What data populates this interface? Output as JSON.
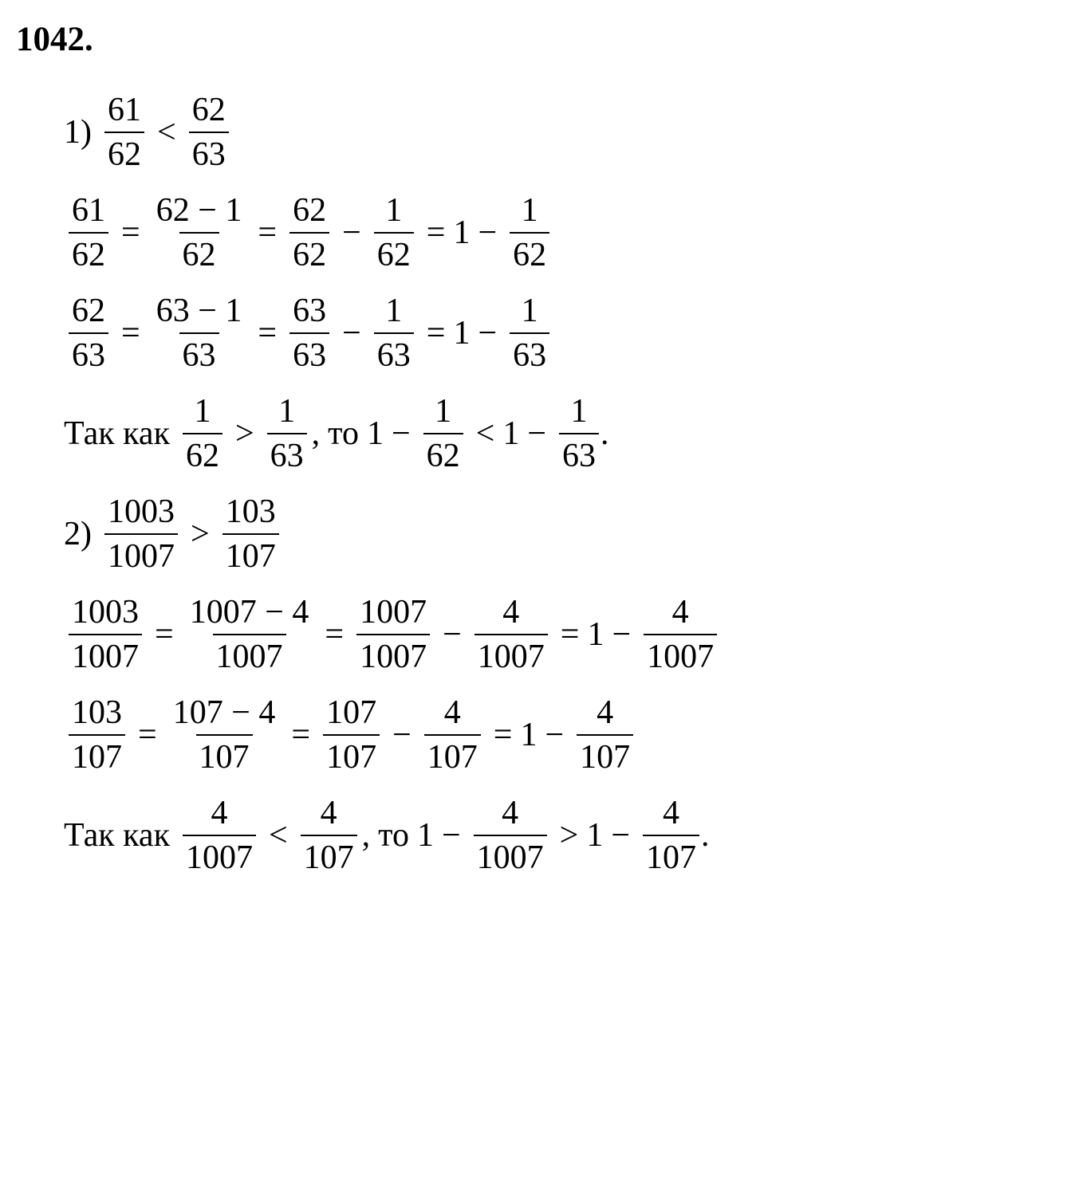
{
  "problem_number": "1042.",
  "item1": {
    "label": "1)",
    "inequality": {
      "left_num": "61",
      "left_den": "62",
      "op": "<",
      "right_num": "62",
      "right_den": "63"
    },
    "expansion1": {
      "a_num": "61",
      "a_den": "62",
      "b_num": "62 − 1",
      "b_den": "62",
      "c_num": "62",
      "c_den": "62",
      "d_num": "1",
      "d_den": "62",
      "e": "1",
      "f_num": "1",
      "f_den": "62"
    },
    "expansion2": {
      "a_num": "62",
      "a_den": "63",
      "b_num": "63 − 1",
      "b_den": "63",
      "c_num": "63",
      "c_den": "63",
      "d_num": "1",
      "d_den": "63",
      "e": "1",
      "f_num": "1",
      "f_den": "63"
    },
    "conclusion": {
      "prefix": "Так как",
      "left_num": "1",
      "left_den": "62",
      "op1": ">",
      "right_num": "1",
      "right_den": "63",
      "comma": ",",
      "mid": "то",
      "r1_a": "1",
      "r1_num": "1",
      "r1_den": "62",
      "op2": "<",
      "r2_a": "1",
      "r2_num": "1",
      "r2_den": "63",
      "period": "."
    }
  },
  "item2": {
    "label": "2)",
    "inequality": {
      "left_num": "1003",
      "left_den": "1007",
      "op": ">",
      "right_num": "103",
      "right_den": "107"
    },
    "expansion1": {
      "a_num": "1003",
      "a_den": "1007",
      "b_num": "1007 − 4",
      "b_den": "1007",
      "c_num": "1007",
      "c_den": "1007",
      "d_num": "4",
      "d_den": "1007",
      "e": "1",
      "f_num": "4",
      "f_den": "1007"
    },
    "expansion2": {
      "a_num": "103",
      "a_den": "107",
      "b_num": "107 − 4",
      "b_den": "107",
      "c_num": "107",
      "c_den": "107",
      "d_num": "4",
      "d_den": "107",
      "e": "1",
      "f_num": "4",
      "f_den": "107"
    },
    "conclusion": {
      "prefix": "Так как",
      "left_num": "4",
      "left_den": "1007",
      "op1": "<",
      "right_num": "4",
      "right_den": "107",
      "comma": ",",
      "mid": "то",
      "r1_a": "1",
      "r1_num": "4",
      "r1_den": "1007",
      "op2": ">",
      "r2_a": "1",
      "r2_num": "4",
      "r2_den": "107",
      "period": "."
    }
  },
  "symbols": {
    "eq": "=",
    "minus": "−"
  }
}
